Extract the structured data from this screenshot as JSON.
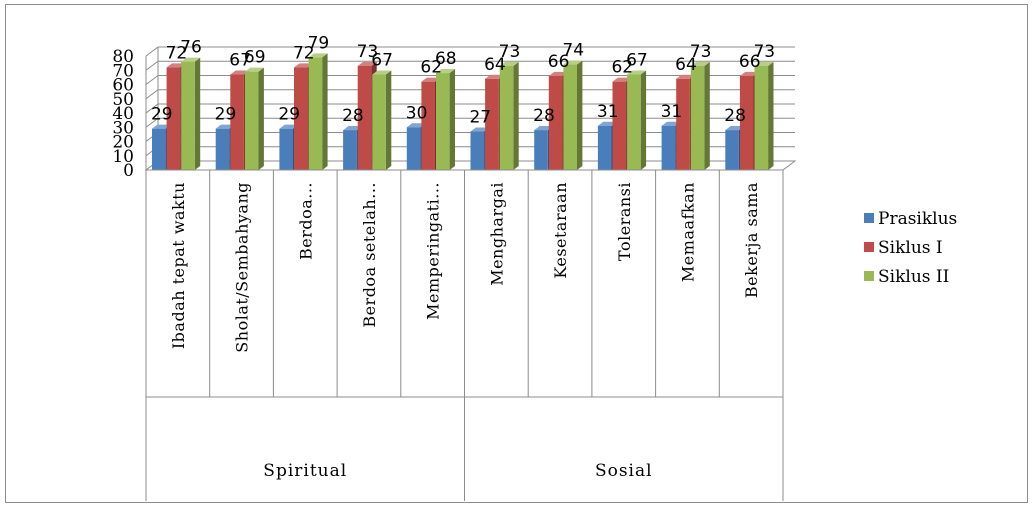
{
  "chart_data": {
    "type": "bar",
    "ylim": [
      0,
      80
    ],
    "y_ticks": [
      0,
      10,
      20,
      30,
      40,
      50,
      60,
      70,
      80
    ],
    "grid": true,
    "legend_position": "right",
    "categories": [
      "Ibadah tepat waktu",
      "Sholat/Sembahyang",
      "Berdoa...",
      "Berdoa setelah...",
      "Memperingati...",
      "Menghargai",
      "Kesetaraan",
      "Toleransi",
      "Memaafkan",
      "Bekerja sama"
    ],
    "groups": [
      {
        "label": "Spiritual",
        "start": 0,
        "end": 4
      },
      {
        "label": "Sosial",
        "start": 5,
        "end": 9
      }
    ],
    "series": [
      {
        "name": "Prasiklus",
        "color": "#4a7ebb",
        "values": [
          29,
          29,
          29,
          28,
          30,
          27,
          28,
          31,
          31,
          28
        ]
      },
      {
        "name": "Siklus I",
        "color": "#be4b48",
        "values": [
          72,
          67,
          72,
          73,
          62,
          64,
          66,
          62,
          64,
          66
        ]
      },
      {
        "name": "Siklus II",
        "color": "#98b954",
        "values": [
          76,
          69,
          79,
          67,
          68,
          73,
          74,
          67,
          73,
          73
        ]
      }
    ]
  }
}
